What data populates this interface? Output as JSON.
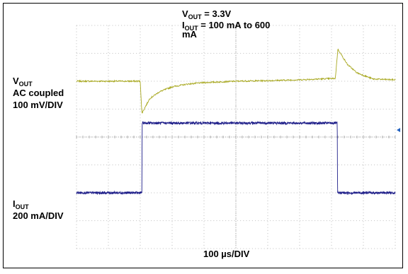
{
  "chart_data": {
    "type": "line",
    "title_lines": [
      {
        "main": "V",
        "sub": "OUT",
        "rest": " = 3.3V"
      },
      {
        "main": "I",
        "sub": "OUT",
        "rest": " =  100 mA  to  600"
      },
      {
        "main": "mA",
        "sub": "",
        "rest": ""
      }
    ],
    "xlabel": "100 µs/DIV",
    "x_unit": "µs",
    "x_per_div": 100,
    "xlim": [
      0,
      1000
    ],
    "divisions": {
      "x": 10,
      "y": 8
    },
    "grid": true,
    "channel1": {
      "name_main": "V",
      "name_sub": "OUT",
      "lines": [
        "AC coupled",
        "100 mV/DIV"
      ],
      "color": "#a8a820",
      "baseline_div": 2.0,
      "x": [
        0,
        80,
        200,
        205,
        230,
        260,
        300,
        350,
        400,
        500,
        600,
        700,
        740,
        812,
        820,
        850,
        880,
        930,
        1000
      ],
      "y": [
        0.0,
        0.0,
        0.0,
        -1.15,
        -0.62,
        -0.38,
        -0.2,
        -0.1,
        -0.05,
        0.0,
        0.02,
        0.05,
        0.07,
        0.1,
        1.15,
        0.6,
        0.3,
        0.08,
        0.05
      ]
    },
    "channel2": {
      "name_main": "I",
      "name_sub": "OUT",
      "lines": [
        "200 mA/DIV"
      ],
      "color": "#20208a",
      "x": [
        0,
        205,
        206,
        818,
        819,
        1000
      ],
      "y": [
        100,
        100,
        600,
        600,
        100,
        100
      ],
      "y_unit": "mA",
      "mA_per_div": 200,
      "zero_div": 6.5
    },
    "marker_color": "#2060c0"
  }
}
